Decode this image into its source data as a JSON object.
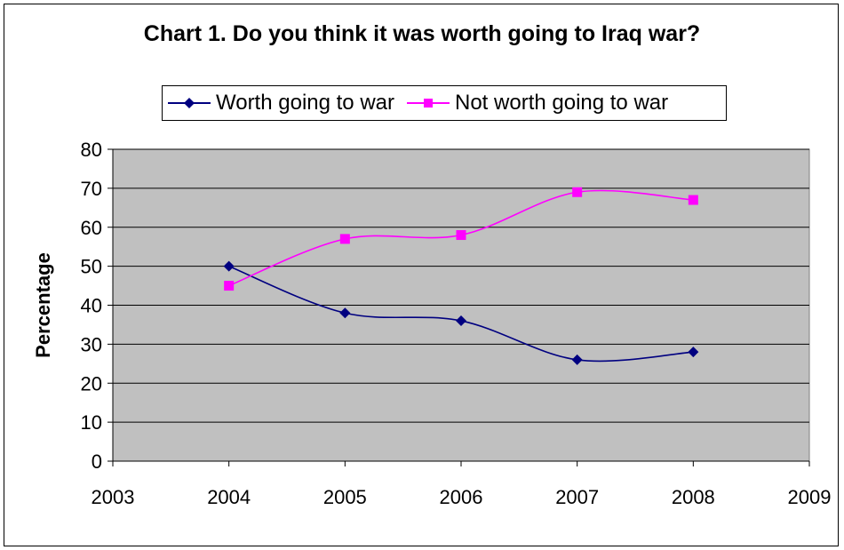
{
  "chart_data": {
    "type": "line",
    "title": "Chart 1. Do you think it was worth going to Iraq war?",
    "xlabel": "",
    "ylabel": "Percentage",
    "x": [
      2004,
      2005,
      2006,
      2007,
      2008
    ],
    "xlim": [
      2003,
      2009
    ],
    "xticks": [
      "2003",
      "2004",
      "2005",
      "2006",
      "2007",
      "2008",
      "2009"
    ],
    "ylim": [
      0,
      80
    ],
    "yticks": [
      "0",
      "10",
      "20",
      "30",
      "40",
      "50",
      "60",
      "70",
      "80"
    ],
    "grid": true,
    "legend_position": "top",
    "plot_background": "#c0c0c0",
    "series": [
      {
        "name": "Worth going to war",
        "color": "#000080",
        "marker": "diamond",
        "values": [
          50,
          38,
          36,
          26,
          28
        ]
      },
      {
        "name": "Not worth going to war",
        "color": "#ff00ff",
        "marker": "square",
        "values": [
          45,
          57,
          58,
          69,
          67
        ]
      }
    ]
  }
}
